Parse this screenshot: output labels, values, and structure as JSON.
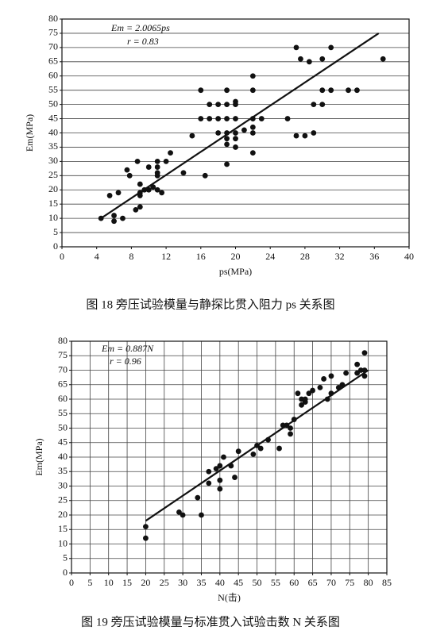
{
  "chart_data": [
    {
      "type": "scatter",
      "caption": "图 18 旁压试验模量与静探比贯入阻力 ps 关系图",
      "xlabel": "ps(MPa)",
      "ylabel": "Em(MPa)",
      "annotations": [
        "Em = 2.0065ps",
        "r = 0.83"
      ],
      "xlim": [
        0,
        40
      ],
      "xticks": [
        0,
        4,
        8,
        12,
        16,
        20,
        24,
        28,
        32,
        36,
        40
      ],
      "ylim": [
        0,
        80
      ],
      "yticks": [
        0,
        5,
        10,
        15,
        20,
        25,
        30,
        35,
        40,
        45,
        50,
        55,
        60,
        65,
        70,
        75,
        80
      ],
      "grid": "y",
      "series": [
        {
          "type": "scatter",
          "color": "#111111",
          "x": [
            4.5,
            5.5,
            6,
            6,
            6.5,
            7,
            7.5,
            7.8,
            8.5,
            8.7,
            9,
            9,
            9,
            9,
            9.5,
            10,
            10,
            10.5,
            11,
            11,
            11,
            11,
            11,
            11.5,
            12,
            12.5,
            14,
            15,
            16,
            16,
            16.5,
            17,
            17,
            18,
            18,
            18,
            19,
            19,
            19,
            19,
            19,
            19,
            19,
            20,
            20,
            20,
            20,
            20,
            20,
            21,
            22,
            22,
            22,
            22,
            22,
            22,
            23,
            26,
            27,
            27,
            27.5,
            28,
            28.5,
            29,
            29,
            30,
            30,
            30,
            31,
            31,
            33,
            34,
            37
          ],
          "values": [
            10,
            18,
            9,
            11,
            19,
            10,
            27,
            25,
            13,
            30,
            22,
            18,
            14,
            19,
            20,
            28,
            20,
            21,
            30,
            28,
            26,
            25,
            20,
            19,
            30,
            33,
            26,
            39,
            55,
            45,
            25,
            50,
            45,
            45,
            40,
            50,
            55,
            50,
            45,
            40,
            38,
            36,
            29,
            51,
            50,
            45,
            40,
            38,
            35,
            41,
            60,
            55,
            45,
            42,
            40,
            33,
            45,
            45,
            70,
            39,
            66,
            39,
            65,
            50,
            40,
            66,
            55,
            50,
            70,
            55,
            55,
            55,
            66
          ]
        },
        {
          "type": "line",
          "color": "#111111",
          "x": [
            4.5,
            36.5
          ],
          "values": [
            10,
            75
          ]
        }
      ]
    },
    {
      "type": "scatter",
      "caption": "图 19 旁压试验模量与标准贯入试验击数 N 关系图",
      "xlabel": "N(击)",
      "ylabel": "Em(MPa)",
      "annotations": [
        "Em = 0.887N",
        "r = 0.96"
      ],
      "xlim": [
        0,
        85
      ],
      "xticks": [
        0,
        5,
        10,
        15,
        20,
        25,
        30,
        35,
        40,
        45,
        50,
        55,
        60,
        65,
        70,
        75,
        80,
        85
      ],
      "ylim": [
        0,
        80
      ],
      "yticks": [
        0,
        5,
        10,
        15,
        20,
        25,
        30,
        35,
        40,
        45,
        50,
        55,
        60,
        65,
        70,
        75,
        80
      ],
      "grid": "both",
      "series": [
        {
          "type": "scatter",
          "color": "#111111",
          "x": [
            20,
            20,
            29,
            30,
            34,
            35,
            37,
            37,
            39,
            40,
            40,
            40,
            41,
            43,
            44,
            45,
            49,
            50,
            51,
            53,
            56,
            57,
            58,
            59,
            59,
            60,
            61,
            62,
            62,
            63,
            63,
            64,
            65,
            67,
            68,
            69,
            70,
            70,
            72,
            73,
            74,
            77,
            77,
            78,
            79,
            79,
            79
          ],
          "values": [
            16,
            12,
            21,
            20,
            26,
            20,
            31,
            35,
            36,
            37,
            32,
            29,
            40,
            37,
            33,
            42,
            41,
            44,
            43,
            46,
            43,
            51,
            51,
            50,
            48,
            53,
            62,
            58,
            60,
            59,
            60,
            62,
            63,
            64,
            67,
            60,
            62,
            68,
            64,
            65,
            69,
            72,
            69,
            70,
            70,
            76,
            68
          ]
        },
        {
          "type": "line",
          "color": "#111111",
          "x": [
            20,
            80
          ],
          "values": [
            18,
            70
          ]
        }
      ]
    }
  ]
}
